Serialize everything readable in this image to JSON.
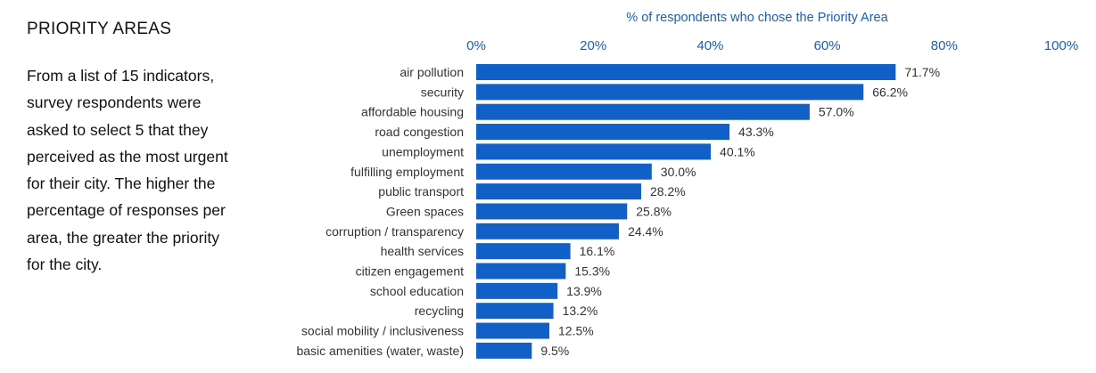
{
  "panel": {
    "title": "PRIORITY AREAS",
    "description": "From a list of 15 indicators, survey respondents were asked to select 5 that they perceived as the most urgent for their city. The higher the percentage of responses per area, the greater the priority for the city."
  },
  "chart_data": {
    "type": "bar",
    "orientation": "horizontal",
    "title": "% of respondents who chose the Priority Area",
    "xlim": [
      0,
      100
    ],
    "ticks": [
      0,
      20,
      40,
      60,
      80,
      100
    ],
    "tick_labels": [
      "0%",
      "20%",
      "40%",
      "60%",
      "80%",
      "100%"
    ],
    "axis_position": "top",
    "grid": false,
    "bar_color": "#1160c8",
    "categories": [
      "air pollution",
      "security",
      "affordable housing",
      "road congestion",
      "unemployment",
      "fulfilling employment",
      "public transport",
      "Green spaces",
      "corruption / transparency",
      "health services",
      "citizen engagement",
      "school education",
      "recycling",
      "social mobility / inclusiveness",
      "basic amenities (water, waste)"
    ],
    "values": [
      71.7,
      66.2,
      57.0,
      43.3,
      40.1,
      30.0,
      28.2,
      25.8,
      24.4,
      16.1,
      15.3,
      13.9,
      13.2,
      12.5,
      9.5
    ],
    "value_labels": [
      "71.7%",
      "66.2%",
      "57.0%",
      "43.3%",
      "40.1%",
      "30.0%",
      "28.2%",
      "25.8%",
      "24.4%",
      "16.1%",
      "15.3%",
      "13.9%",
      "13.2%",
      "12.5%",
      "9.5%"
    ]
  }
}
